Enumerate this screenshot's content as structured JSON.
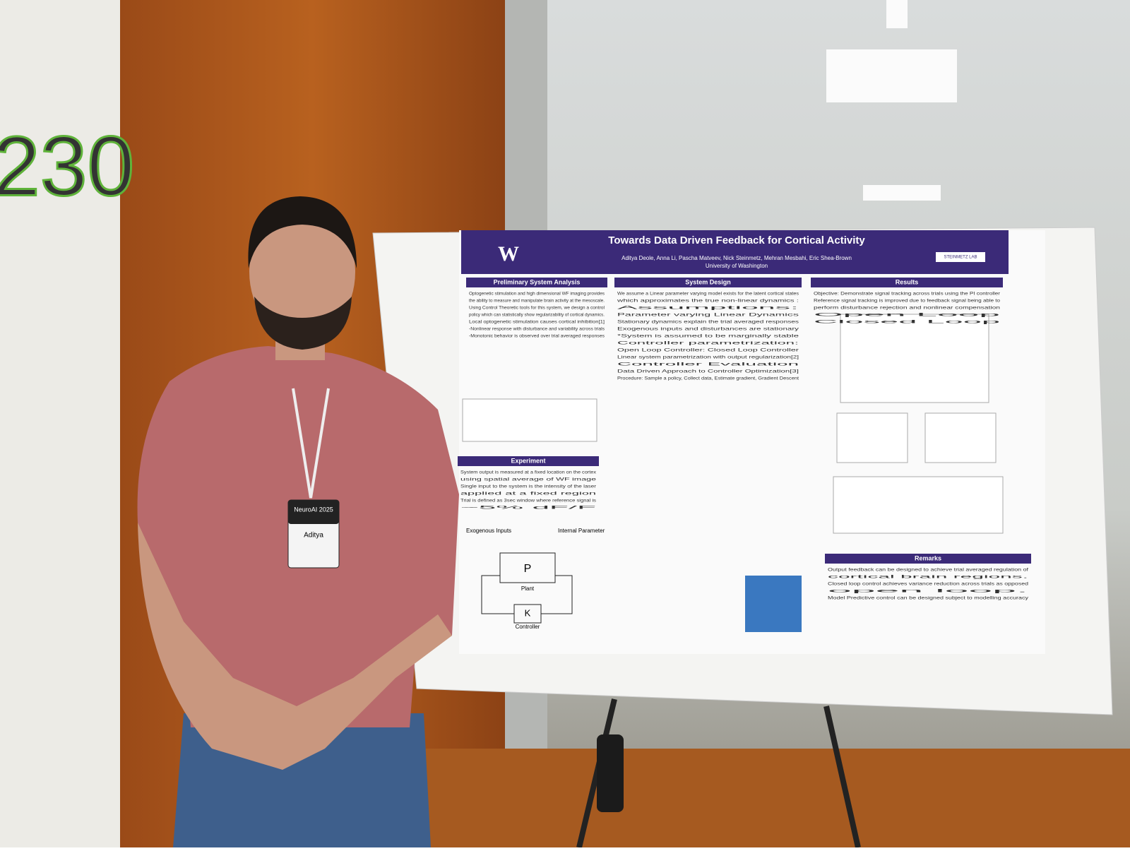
{
  "wall_sign": {
    "text": "230"
  },
  "poster": {
    "title": "Towards Data Driven Feedback for Cortical Activity",
    "authors": "Aditya Deole, Anna Li, Pascha Matveev, Nick Steinmetz, Mehran Mesbahi, Eric Shea-Brown",
    "affiliation": "University of Washington",
    "logo": "W",
    "lab": "STEINMETZ LAB",
    "sections": [
      {
        "heading": "Preliminary System Analysis",
        "lines": [
          "Optogenetic stimulation and high dimensional WF imaging provides",
          "the ability to measure and manipulate brain activity at the mesoscale.",
          "Using Control Theoretic tools for this system, we design a control",
          "policy which can statistically show regularizability of cortical dynamics.",
          "Local optogenetic stimulation causes cortical inhibition[1]",
          "-Nonlinear response with disturbance and variability across trials",
          "-Monotonic behavior is observed over trial averaged responses"
        ]
      },
      {
        "heading": "Experiment",
        "lines": [
          "System output is measured at a fixed location on the cortex",
          "using spatial average of WF image",
          "Single input to the system is the intensity of the laser",
          "applied at a fixed region",
          "Trial is defined as 3sec window where reference signal is",
          "~5% dF/F"
        ]
      },
      {
        "heading": "System Design",
        "lines": [
          "We assume a Linear parameter varying model exists for the latent cortical states",
          "which approximates the true non-linear dynamics :",
          "Assumptions:",
          "Parameter varying Linear Dynamics",
          "Stationary dynamics explain the trial averaged responses",
          "Exogenous inputs and disturbances are stationary",
          "*System is assumed to be marginally stable",
          "Controller parametrization:",
          "Open Loop Controller:          Closed Loop Controller",
          "Linear system parametrization with output regularization[2]",
          "Controller Evaluation",
          "Data Driven Approach to Controller Optimization[3]",
          "Procedure: Sample a policy, Collect data, Estimate gradient, Gradient Descent"
        ]
      },
      {
        "heading": "Results",
        "lines": [
          "Objective: Demonstrate signal tracking across trials using the PI controller",
          "Reference signal tracking is improved due to feedback signal being able to",
          "perform disturbance rejection and nonlinear compensation",
          "Open Loop",
          "Closed Loop"
        ]
      },
      {
        "heading": "Remarks",
        "lines": [
          "Output feedback can be designed to achieve trial averaged regulation of",
          "cortical brain regions.",
          "Closed loop control achieves variance reduction across trials as opposed",
          "open loop.",
          "Model Predictive control can be designed subject to modelling accuracy"
        ]
      }
    ],
    "diagram": {
      "inputs": "Exogenous Inputs",
      "param": "Internal Parameter",
      "plant": "P",
      "plant_label": "Plant",
      "controller": "K",
      "controller_label": "Controller"
    }
  },
  "badge": {
    "event": "NeuroAI 2025",
    "name": "Aditya"
  }
}
